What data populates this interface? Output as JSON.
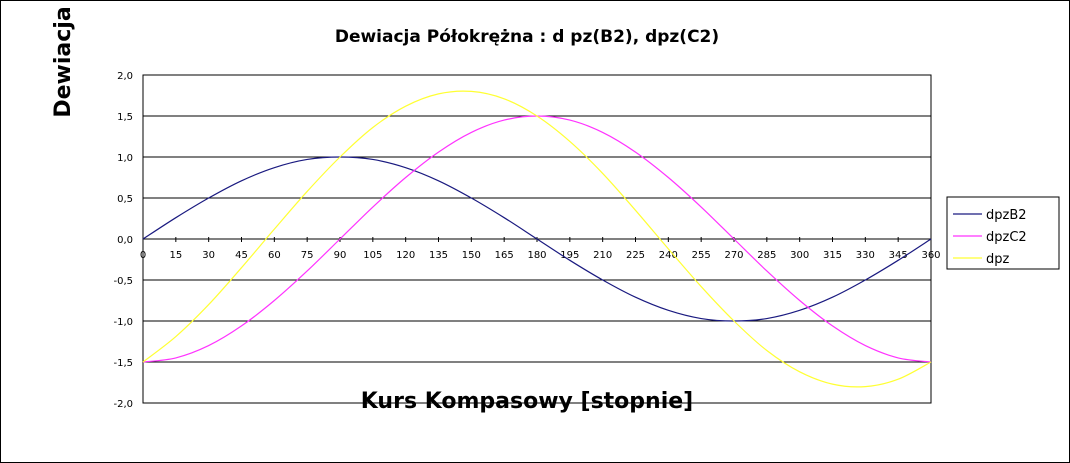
{
  "chart_data": {
    "type": "line",
    "title": "Dewiacja Półokrężna : d pz(B2), dpz(C2)",
    "xlabel": "Kurs Kompasowy  [stopnie]",
    "ylabel": "Dewiacja",
    "x_ticks": [
      "0",
      "15",
      "30",
      "45",
      "60",
      "75",
      "90",
      "105",
      "120",
      "135",
      "150",
      "165",
      "180",
      "195",
      "210",
      "225",
      "240",
      "255",
      "270",
      "285",
      "300",
      "315",
      "330",
      "345",
      "360"
    ],
    "y_ticks": [
      "2,0",
      "1,5",
      "1,0",
      "0,5",
      "0,0",
      "-0,5",
      "-1,0",
      "-1,5",
      "-2,0"
    ],
    "xlim": [
      0,
      360
    ],
    "ylim": [
      -2,
      2
    ],
    "grid": "horizontal",
    "legend_position": "right",
    "x": [
      0,
      15,
      30,
      45,
      60,
      75,
      90,
      105,
      120,
      135,
      150,
      165,
      180,
      195,
      210,
      225,
      240,
      255,
      270,
      285,
      300,
      315,
      330,
      345,
      360
    ],
    "series": [
      {
        "name": "dpzB2",
        "color": "#1a1a80",
        "values": [
          0.0,
          0.26,
          0.5,
          0.71,
          0.87,
          0.97,
          1.0,
          0.97,
          0.87,
          0.71,
          0.5,
          0.26,
          0.0,
          -0.26,
          -0.5,
          -0.71,
          -0.87,
          -0.97,
          -1.0,
          -0.97,
          -0.87,
          -0.71,
          -0.5,
          -0.26,
          0.0
        ]
      },
      {
        "name": "dpzC2",
        "color": "#ff33ff",
        "values": [
          -1.5,
          -1.45,
          -1.3,
          -1.06,
          -0.75,
          -0.39,
          0.0,
          0.39,
          0.75,
          1.06,
          1.3,
          1.45,
          1.5,
          1.45,
          1.3,
          1.06,
          0.75,
          0.39,
          0.0,
          -0.39,
          -0.75,
          -1.06,
          -1.3,
          -1.45,
          -1.5
        ]
      },
      {
        "name": "dpz",
        "color": "#ffff33",
        "values": [
          -1.5,
          -1.19,
          -0.8,
          -0.35,
          0.12,
          0.58,
          1.0,
          1.36,
          1.62,
          1.77,
          1.8,
          1.71,
          1.5,
          1.19,
          0.8,
          0.35,
          -0.12,
          -0.58,
          -1.0,
          -1.36,
          -1.62,
          -1.77,
          -1.8,
          -1.71,
          -1.5
        ]
      }
    ]
  }
}
